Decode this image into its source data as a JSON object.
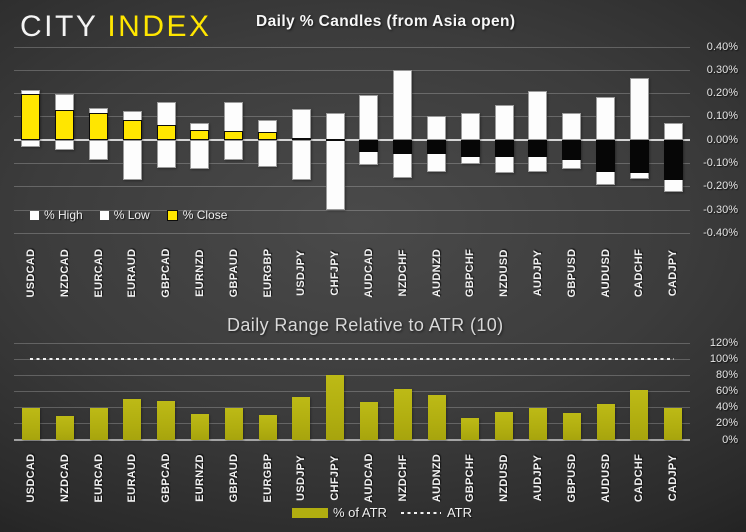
{
  "logo": {
    "city": "CITY",
    "index": "INDEX"
  },
  "colors": {
    "accent_yellow": "#ffe600",
    "olive_bar": "#b1ae10",
    "candle_white": "#fdfdfd",
    "candle_negative_close": "#060606",
    "background_center": "#4a4a4a",
    "background_edge": "#101010",
    "text": "#f1f1f1"
  },
  "chart_data": [
    {
      "type": "bar",
      "subtype": "stacked-candle-columns",
      "title": "Daily % Candles (from Asia open)",
      "categories": [
        "USDCAD",
        "NZDCAD",
        "EURCAD",
        "EURAUD",
        "GBPCAD",
        "EURNZD",
        "GBPAUD",
        "EURGBP",
        "USDJPY",
        "CHFJPY",
        "AUDCAD",
        "NZDCHF",
        "AUDNZD",
        "GBPCHF",
        "NZDUSD",
        "AUDJPY",
        "GBPUSD",
        "AUDUSD",
        "CADCHF",
        "CADJPY"
      ],
      "series": [
        {
          "name": "% High",
          "values": [
            0.215,
            0.2,
            0.14,
            0.125,
            0.165,
            0.075,
            0.165,
            0.085,
            0.135,
            0.115,
            0.195,
            0.3,
            0.105,
            0.115,
            0.15,
            0.21,
            0.115,
            0.185,
            0.265,
            0.075
          ]
        },
        {
          "name": "% Low",
          "values": [
            -0.03,
            -0.04,
            -0.085,
            -0.17,
            -0.12,
            -0.125,
            -0.085,
            -0.115,
            -0.17,
            -0.3,
            -0.105,
            -0.16,
            -0.135,
            -0.1,
            -0.14,
            -0.135,
            -0.125,
            -0.19,
            -0.165,
            -0.22
          ]
        },
        {
          "name": "% Close",
          "values": [
            0.2,
            0.13,
            0.115,
            0.085,
            0.065,
            0.045,
            0.04,
            0.035,
            0.01,
            0.005,
            -0.05,
            -0.06,
            -0.06,
            -0.07,
            -0.07,
            -0.07,
            -0.085,
            -0.135,
            -0.14,
            -0.17
          ]
        }
      ],
      "ylim": [
        -0.4,
        0.4
      ],
      "ytick_values": [
        0.4,
        0.3,
        0.2,
        0.1,
        0.0,
        -0.1,
        -0.2,
        -0.3,
        -0.4
      ],
      "ytick_labels": [
        "0.40%",
        "0.30%",
        "0.20%",
        "0.10%",
        "0.00%",
        "-0.10%",
        "-0.20%",
        "-0.30%",
        "-0.40%"
      ],
      "grid": true,
      "legend": [
        "% High",
        "% Low",
        "% Close"
      ],
      "legend_swatch_colors": [
        "#ffffff",
        "#ffffff",
        "#ffe600"
      ],
      "legend_position": "inside-bottom-left",
      "yaxis_position": "right"
    },
    {
      "type": "bar",
      "title": "Daily Range Relative to ATR (10)",
      "categories": [
        "USDCAD",
        "NZDCAD",
        "EURCAD",
        "EURAUD",
        "GBPCAD",
        "EURNZD",
        "GBPAUD",
        "EURGBP",
        "USDJPY",
        "CHFJPY",
        "AUDCAD",
        "NZDCHF",
        "AUDNZD",
        "GBPCHF",
        "NZDUSD",
        "AUDJPY",
        "GBPUSD",
        "AUDUSD",
        "CADCHF",
        "CADJPY"
      ],
      "series": [
        {
          "name": "% of ATR",
          "values": [
            40,
            30,
            39,
            51,
            48,
            32,
            40,
            31,
            53,
            80,
            47,
            63,
            56,
            27,
            35,
            40,
            34,
            45,
            62,
            39
          ]
        }
      ],
      "reference_line": {
        "name": "ATR",
        "value": 100,
        "style": "dotted"
      },
      "ylim": [
        0,
        120
      ],
      "ytick_values": [
        120,
        100,
        80,
        60,
        40,
        20,
        0
      ],
      "ytick_labels": [
        "120%",
        "100%",
        "80%",
        "60%",
        "40%",
        "20%",
        "0%"
      ],
      "grid": true,
      "legend": [
        "% of ATR",
        "ATR"
      ],
      "legend_position": "bottom-center",
      "yaxis_position": "right"
    }
  ]
}
